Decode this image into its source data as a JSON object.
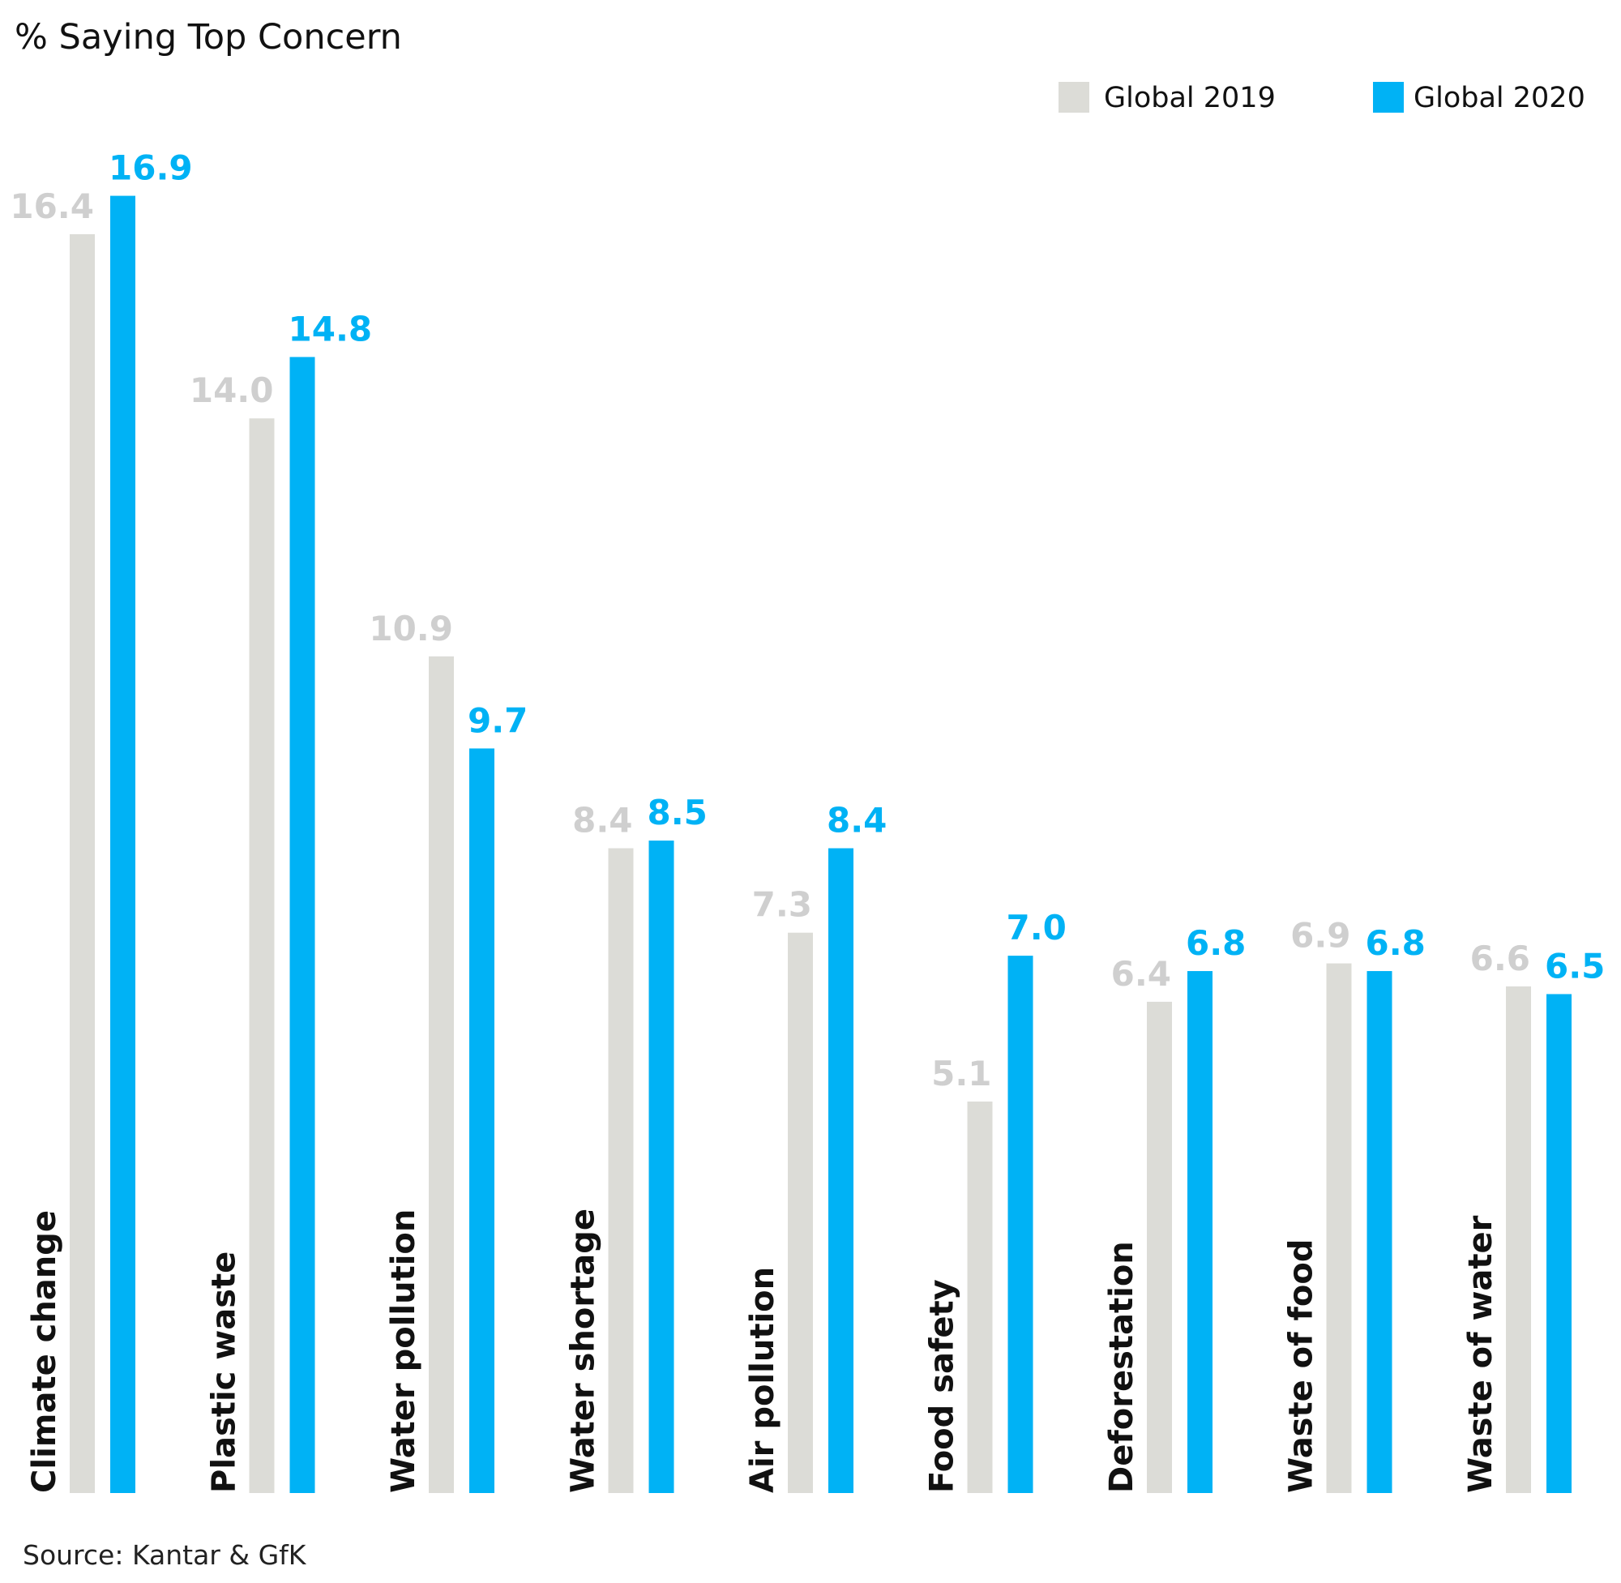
{
  "chart_data": {
    "type": "bar",
    "title": "% Saying Top Concern",
    "source": "Source: Kantar & GfK",
    "legend_position": "top-right",
    "grid": false,
    "ylim": [
      0,
      17
    ],
    "categories": [
      "Climate change",
      "Plastic waste",
      "Water pollution",
      "Water shortage",
      "Air pollution",
      "Food safety",
      "Deforestation",
      "Waste of food",
      "Waste of water"
    ],
    "series": [
      {
        "name": "Global 2019",
        "color": "#dcdcd7",
        "label_color": "#cfcfcf",
        "values": [
          16.4,
          14.0,
          10.9,
          8.4,
          7.3,
          5.1,
          6.4,
          6.9,
          6.6
        ],
        "labels": [
          "16.4",
          "14.0",
          "10.9",
          "8.4",
          "7.3",
          "5.1",
          "6.4",
          "6.9",
          "6.6"
        ]
      },
      {
        "name": "Global 2020",
        "color": "#00b2f5",
        "label_color": "#00b2f5",
        "values": [
          16.9,
          14.8,
          9.7,
          8.5,
          8.4,
          7.0,
          6.8,
          6.8,
          6.5
        ],
        "labels": [
          "16.9",
          "14.8",
          "9.7",
          "8.5",
          "8.4",
          "7.0",
          "6.8",
          "6.8",
          "6.5"
        ]
      }
    ]
  }
}
